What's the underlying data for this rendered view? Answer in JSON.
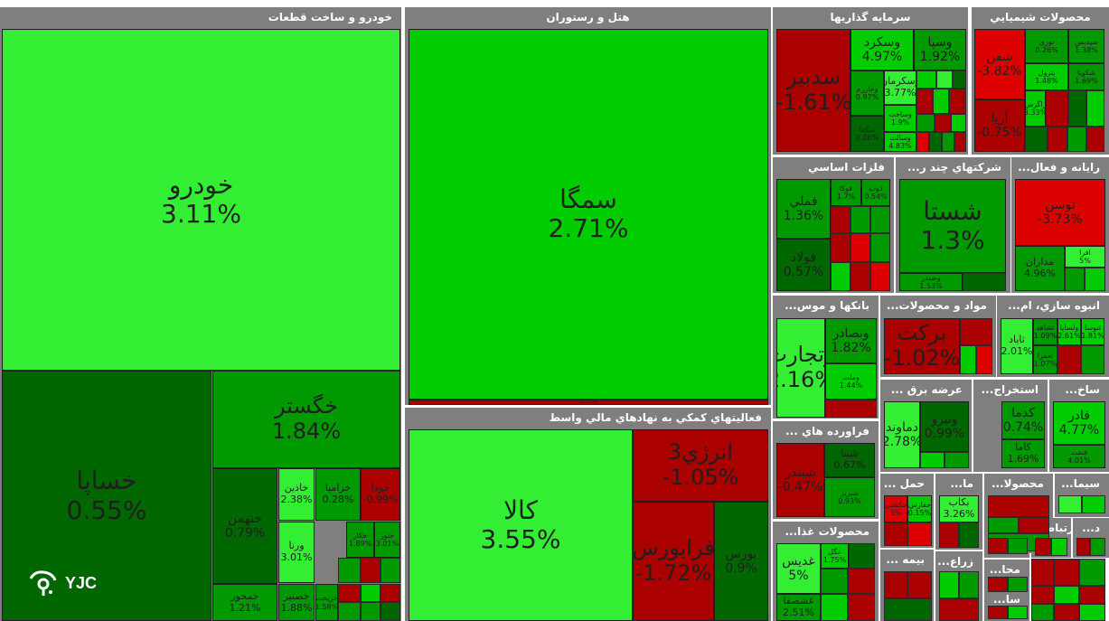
{
  "colors": {
    "bright_green": "#33ee33",
    "green": "#00cc00",
    "mid_green": "#009900",
    "dark_green": "#006600",
    "red": "#dd0000",
    "dark_red": "#aa0000",
    "header_gray": "#7f7f7f"
  },
  "sectors": [
    {
      "id": "auto",
      "title": "خودرو و ساخت قطعات"
    },
    {
      "id": "hotel",
      "title": "هتل و رستوران"
    },
    {
      "id": "invest",
      "title": "سرمايه گذاريها"
    },
    {
      "id": "chem",
      "title": "محصولات شيميايي"
    },
    {
      "id": "finance",
      "title": "فعاليتهاي كمكي به نهادهاي مالي واسط"
    },
    {
      "id": "metals",
      "title": "فلزات اساسي"
    },
    {
      "id": "multi",
      "title": "...شركتهاي چند ر"
    },
    {
      "id": "computer",
      "title": "...رايانه و فعال"
    },
    {
      "id": "banks",
      "title": "...بانكها و موس"
    },
    {
      "id": "materials",
      "title": "...مواد و محصولات"
    },
    {
      "id": "mass",
      "title": "...انبوه سازي، ام"
    },
    {
      "id": "oil",
      "title": "... فراورده هاي"
    },
    {
      "id": "power",
      "title": "... عرضه برق"
    },
    {
      "id": "extract",
      "title": "...استخراج"
    },
    {
      "id": "build",
      "title": "...ساخ"
    },
    {
      "id": "food",
      "title": "...محصولات غذا"
    },
    {
      "id": "transport",
      "title": "... حمل"
    },
    {
      "id": "ma",
      "title": "...ما"
    },
    {
      "id": "product",
      "title": "...محصولا"
    },
    {
      "id": "cement",
      "title": "...سيما"
    },
    {
      "id": "insurance",
      "title": "... بيمه"
    },
    {
      "id": "agri",
      "title": "...زراع"
    },
    {
      "id": "sa",
      "title": "...سا"
    },
    {
      "id": "arta",
      "title": "...ارتباط"
    },
    {
      "id": "d",
      "title": "...د"
    },
    {
      "id": "mah",
      "title": "...محا"
    },
    {
      "id": "sa2",
      "title": "...سا"
    }
  ],
  "tiles": [
    {
      "name": "خودرو",
      "pct": "3.11%"
    },
    {
      "name": "خگستر",
      "pct": "1.84%"
    },
    {
      "name": "خساپا",
      "pct": "0.55%"
    },
    {
      "name": "خنهمن",
      "pct": "0.79%"
    },
    {
      "name": "خاذين",
      "pct": "2.38%"
    },
    {
      "name": "خزاميا",
      "pct": "0.28%"
    },
    {
      "name": "خودا",
      "pct": "-0.99%"
    },
    {
      "name": "ورنا",
      "pct": "3.01%"
    },
    {
      "name": "ختور",
      "pct": "3.01%"
    },
    {
      "name": "خکار",
      "pct": "1.89%"
    },
    {
      "name": "خمحور",
      "pct": "1.21%"
    },
    {
      "name": "خصنير",
      "pct": "1.88%"
    },
    {
      "name": "خريخت",
      "pct": "1.58%"
    },
    {
      "name": "سمگا",
      "pct": "2.71%"
    },
    {
      "name": "گدنا",
      "pct": "-2.75%"
    },
    {
      "name": "كالا",
      "pct": "3.55%"
    },
    {
      "name": "انرژي3",
      "pct": "-1.05%"
    },
    {
      "name": "فرابورس",
      "pct": "-1.72%"
    },
    {
      "name": "بورس",
      "pct": "0.9%"
    },
    {
      "name": "سدبير",
      "pct": "-1.61%"
    },
    {
      "name": "وسكرد",
      "pct": "4.97%"
    },
    {
      "name": "وسپا",
      "pct": "1.92%"
    },
    {
      "name": "وسکرمان",
      "pct": "3.77%"
    },
    {
      "name": "وخارزم",
      "pct": "0.97%"
    },
    {
      "name": "وساخت",
      "pct": "1.9%"
    },
    {
      "name": "وسالت",
      "pct": "4.83%"
    },
    {
      "name": "سكفا",
      "pct": "0.06%"
    },
    {
      "name": "شفن",
      "pct": "-3.82%"
    },
    {
      "name": "شپديس",
      "pct": "1.38%"
    },
    {
      "name": "نوري",
      "pct": "0.26%"
    },
    {
      "name": "شكويا",
      "pct": "1.69%"
    },
    {
      "name": "پترول",
      "pct": "1.48%"
    },
    {
      "name": "زاگرس",
      "pct": "3.33%"
    },
    {
      "name": "آريا",
      "pct": "-0.75%"
    },
    {
      "name": "فملي",
      "pct": "1.36%"
    },
    {
      "name": "فولاد",
      "pct": "0.57%"
    },
    {
      "name": "فوكا",
      "pct": "1.7%"
    },
    {
      "name": "ذوب",
      "pct": "0.54%"
    },
    {
      "name": "شستا",
      "pct": "1.3%"
    },
    {
      "name": "وصندر",
      "pct": "1.53%"
    },
    {
      "name": "توسن",
      "pct": "-3.73%"
    },
    {
      "name": "مداران",
      "pct": "4.96%"
    },
    {
      "name": "افرا",
      "pct": "5%"
    },
    {
      "name": "وبصادر",
      "pct": "1.82%"
    },
    {
      "name": "وتجارت",
      "pct": "2.16%"
    },
    {
      "name": "وملت",
      "pct": "1.44%"
    },
    {
      "name": "بركت",
      "pct": "-1.02%"
    },
    {
      "name": "ثاباد",
      "pct": "2.01%"
    },
    {
      "name": "ثشاهد",
      "pct": "1.09%"
    },
    {
      "name": "ولساپا",
      "pct": "2.61%"
    },
    {
      "name": "ثنوسا",
      "pct": "1.81%"
    },
    {
      "name": "ثعمرا",
      "pct": "1.07%"
    },
    {
      "name": "شپنا",
      "pct": "0.67%"
    },
    {
      "name": "شبندر",
      "pct": "-0.47%"
    },
    {
      "name": "شبريز",
      "pct": "0.93%"
    },
    {
      "name": "دماوند",
      "pct": "2.78%"
    },
    {
      "name": "ونيرو",
      "pct": "0.99%"
    },
    {
      "name": "كدما",
      "pct": "0.74%"
    },
    {
      "name": "كاما",
      "pct": "1.69%"
    },
    {
      "name": "فادر",
      "pct": "4.77%"
    },
    {
      "name": "فنفت",
      "pct": "4.01%"
    },
    {
      "name": "غديس",
      "pct": "5%"
    },
    {
      "name": "غگل",
      "pct": "1.75%"
    },
    {
      "name": "غشصفا",
      "pct": "2.51%"
    },
    {
      "name": "حکشتي",
      "pct": "3%"
    },
    {
      "name": "حفارس",
      "pct": "0.15%"
    },
    {
      "name": "بكاب",
      "pct": "3.26%"
    }
  ],
  "logo": {
    "text": "YJC"
  }
}
